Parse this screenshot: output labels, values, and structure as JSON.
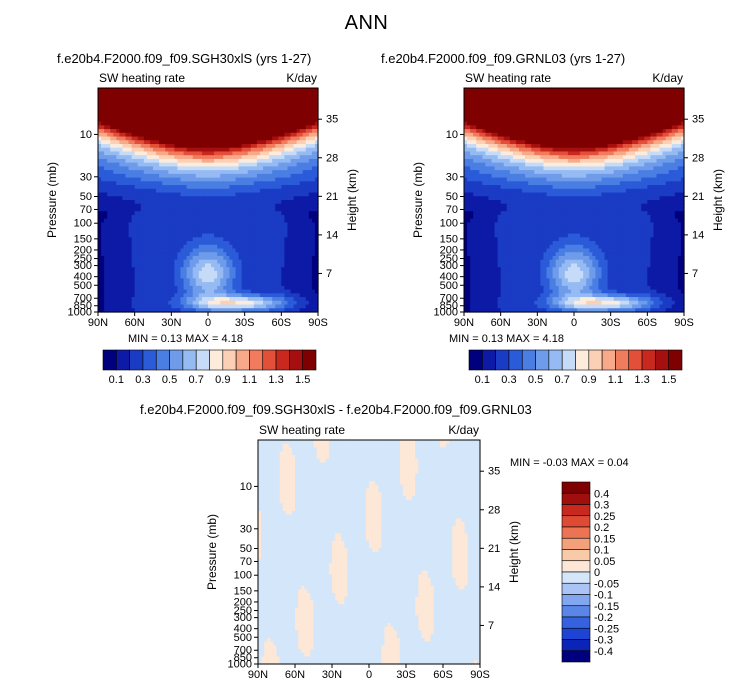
{
  "page": {
    "title": "ANN"
  },
  "colors": {
    "seq_levels": [
      "#00007f",
      "#0d1aa6",
      "#1a3bc4",
      "#2b5bd8",
      "#4a7ee3",
      "#6e9ceb",
      "#96bbf2",
      "#c6dbf8",
      "#fdecdc",
      "#fbd0b4",
      "#f7a98a",
      "#f07b5d",
      "#e3503a",
      "#c9281f",
      "#a60f0f",
      "#7f0000"
    ],
    "diff_levels": [
      "#00007f",
      "#0a24b8",
      "#1d44d2",
      "#3563e0",
      "#5a86e8",
      "#82a6f0",
      "#a9c4f5",
      "#d4e6f9",
      "#fde7d6",
      "#f9caa8",
      "#f4a07b",
      "#ec7455",
      "#de4a33",
      "#c9281f",
      "#a10e0e",
      "#7f0000"
    ]
  },
  "panels": [
    {
      "title": "f.e20b4.F2000.f09_f09.SGH30xlS (yrs 1-27)",
      "var_label": "SW heating rate",
      "units_label": "K/day",
      "ylabel": "Pressure (mb)",
      "y2label": "Height (km)",
      "min_max": "MIN =   0.13   MAX =    4.18"
    },
    {
      "title": "f.e20b4.F2000.f09_f09.GRNL03 (yrs 1-27)",
      "var_label": "SW heating rate",
      "units_label": "K/day",
      "ylabel": "Pressure (mb)",
      "y2label": "Height (km)",
      "min_max": "MIN =   0.13   MAX =    4.18"
    }
  ],
  "diff_panel": {
    "title": "f.e20b4.F2000.f09_f09.SGH30xlS - f.e20b4.F2000.f09_f09.GRNL03",
    "var_label": "SW heating rate",
    "units_label": "K/day",
    "ylabel": "Pressure (mb)",
    "y2label": "Height (km)",
    "min_max": "MIN =   -0.03   MAX =    0.04"
  },
  "chart_data": [
    {
      "type": "heatmap",
      "title": "f.e20b4.F2000.f09_f09.SGH30xlS (yrs 1-27)",
      "variable": "SW heating rate",
      "units": "K/day",
      "xlabel": "",
      "ylabel": "Pressure (mb)",
      "y2label": "Height (km)",
      "x_ticks": [
        "90N",
        "60N",
        "30N",
        "0",
        "30S",
        "60S",
        "90S"
      ],
      "x_values": [
        90,
        60,
        30,
        0,
        -30,
        -60,
        -90
      ],
      "y_ticks_left": [
        "10",
        "30",
        "50",
        "70",
        "100",
        "150",
        "200",
        "250",
        "300",
        "400",
        "500",
        "700",
        "850",
        "1000"
      ],
      "y_values_left": [
        10,
        30,
        50,
        70,
        100,
        150,
        200,
        250,
        300,
        400,
        500,
        700,
        850,
        1000
      ],
      "y_ticks_right": [
        "35",
        "28",
        "21",
        "14",
        "7"
      ],
      "y_values_right": [
        35,
        28,
        21,
        14,
        7
      ],
      "ylim": [
        3,
        1000
      ],
      "yscale": "log",
      "min": 0.13,
      "max": 4.18,
      "colorbar_ticks": [
        "0.1",
        "0.3",
        "0.5",
        "0.7",
        "0.9",
        "1.1",
        "1.3",
        "1.5"
      ],
      "contour_levels": [
        0.1,
        0.2,
        0.3,
        0.4,
        0.5,
        0.6,
        0.7,
        0.8,
        0.9,
        1.0,
        1.1,
        1.2,
        1.3,
        1.4,
        1.5
      ]
    },
    {
      "type": "heatmap",
      "title": "f.e20b4.F2000.f09_f09.GRNL03 (yrs 1-27)",
      "variable": "SW heating rate",
      "units": "K/day",
      "xlabel": "",
      "ylabel": "Pressure (mb)",
      "y2label": "Height (km)",
      "x_ticks": [
        "90N",
        "60N",
        "30N",
        "0",
        "30S",
        "60S",
        "90S"
      ],
      "x_values": [
        90,
        60,
        30,
        0,
        -30,
        -60,
        -90
      ],
      "y_ticks_left": [
        "10",
        "30",
        "50",
        "70",
        "100",
        "150",
        "200",
        "250",
        "300",
        "400",
        "500",
        "700",
        "850",
        "1000"
      ],
      "y_values_left": [
        10,
        30,
        50,
        70,
        100,
        150,
        200,
        250,
        300,
        400,
        500,
        700,
        850,
        1000
      ],
      "y_ticks_right": [
        "35",
        "28",
        "21",
        "14",
        "7"
      ],
      "y_values_right": [
        35,
        28,
        21,
        14,
        7
      ],
      "ylim": [
        3,
        1000
      ],
      "yscale": "log",
      "min": 0.13,
      "max": 4.18,
      "colorbar_ticks": [
        "0.1",
        "0.3",
        "0.5",
        "0.7",
        "0.9",
        "1.1",
        "1.3",
        "1.5"
      ],
      "contour_levels": [
        0.1,
        0.2,
        0.3,
        0.4,
        0.5,
        0.6,
        0.7,
        0.8,
        0.9,
        1.0,
        1.1,
        1.2,
        1.3,
        1.4,
        1.5
      ]
    },
    {
      "type": "heatmap",
      "title": "f.e20b4.F2000.f09_f09.SGH30xlS - f.e20b4.F2000.f09_f09.GRNL03",
      "variable": "SW heating rate",
      "units": "K/day",
      "xlabel": "",
      "ylabel": "Pressure (mb)",
      "y2label": "Height (km)",
      "x_ticks": [
        "90N",
        "60N",
        "30N",
        "0",
        "30S",
        "60S",
        "90S"
      ],
      "x_values": [
        90,
        60,
        30,
        0,
        -30,
        -60,
        -90
      ],
      "y_ticks_left": [
        "10",
        "30",
        "50",
        "70",
        "100",
        "150",
        "200",
        "250",
        "300",
        "400",
        "500",
        "700",
        "850",
        "1000"
      ],
      "y_values_left": [
        10,
        30,
        50,
        70,
        100,
        150,
        200,
        250,
        300,
        400,
        500,
        700,
        850,
        1000
      ],
      "y_ticks_right": [
        "35",
        "28",
        "21",
        "14",
        "7"
      ],
      "y_values_right": [
        35,
        28,
        21,
        14,
        7
      ],
      "ylim": [
        3,
        1000
      ],
      "yscale": "log",
      "min": -0.03,
      "max": 0.04,
      "colorbar_ticks": [
        "0.4",
        "0.3",
        "0.25",
        "0.2",
        "0.15",
        "0.1",
        "0.05",
        "0",
        "-0.05",
        "-0.1",
        "-0.15",
        "-0.2",
        "-0.25",
        "-0.3",
        "-0.4"
      ],
      "colorbar_orientation": "vertical"
    }
  ]
}
